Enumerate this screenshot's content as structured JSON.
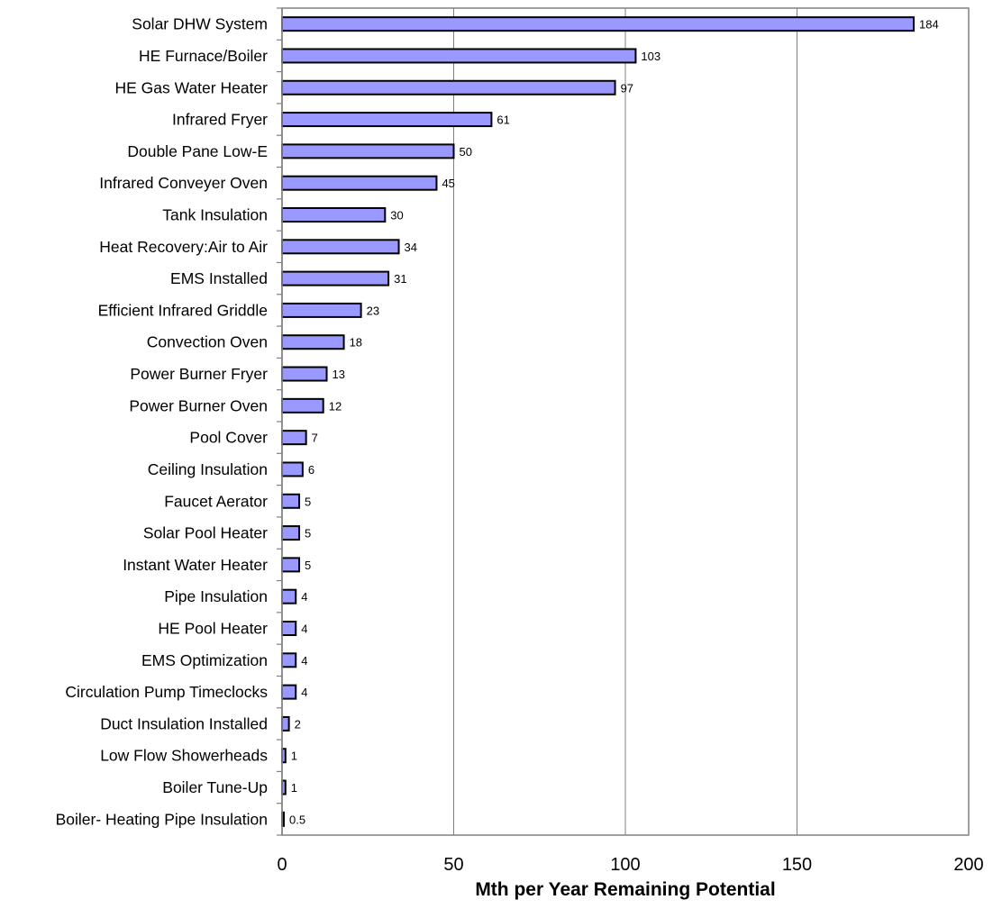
{
  "chart_data": {
    "type": "bar",
    "orientation": "horizontal",
    "categories": [
      "Solar DHW  System",
      "HE Furnace/Boiler",
      "HE Gas Water Heater",
      "Infrared Fryer",
      "Double Pane Low-E",
      "Infrared Conveyer Oven",
      "Tank Insulation",
      "Heat Recovery:Air to Air",
      "EMS Installed",
      "Efficient Infrared Griddle",
      "Convection Oven",
      "Power Burner Fryer",
      "Power Burner Oven",
      "Pool Cover",
      "Ceiling Insulation",
      "Faucet Aerator",
      "Solar Pool Heater",
      "Instant Water Heater",
      "Pipe Insulation",
      "HE Pool Heater",
      "EMS Optimization",
      "Circulation Pump Timeclocks",
      "Duct Insulation Installed",
      "Low Flow Showerheads",
      "Boiler Tune-Up",
      "Boiler- Heating Pipe Insulation"
    ],
    "values": [
      184,
      103,
      97,
      61,
      50,
      45,
      30,
      34,
      31,
      23,
      18,
      13,
      12,
      7,
      6,
      5,
      5,
      5,
      4,
      4,
      4,
      4,
      2,
      1,
      1,
      0.5
    ],
    "data_labels": [
      "184",
      "103",
      "97",
      "61",
      "50",
      "45",
      "30",
      "34",
      "31",
      "23",
      "18",
      "13",
      "12",
      "7",
      "6",
      "5",
      "5",
      "5",
      "4",
      "4",
      "4",
      "4",
      "2",
      "1",
      "1",
      "0.5"
    ],
    "xlabel": "Mth per Year Remaining Potential",
    "ylabel": "",
    "xlim": [
      0,
      200
    ],
    "xticks": [
      0,
      50,
      100,
      150,
      200
    ],
    "grid": "vertical",
    "legend": "none",
    "bar_color": "#9999ff",
    "bar_edge_color": "#000000",
    "grid_color": "#808080",
    "frame_color": "#808080"
  }
}
